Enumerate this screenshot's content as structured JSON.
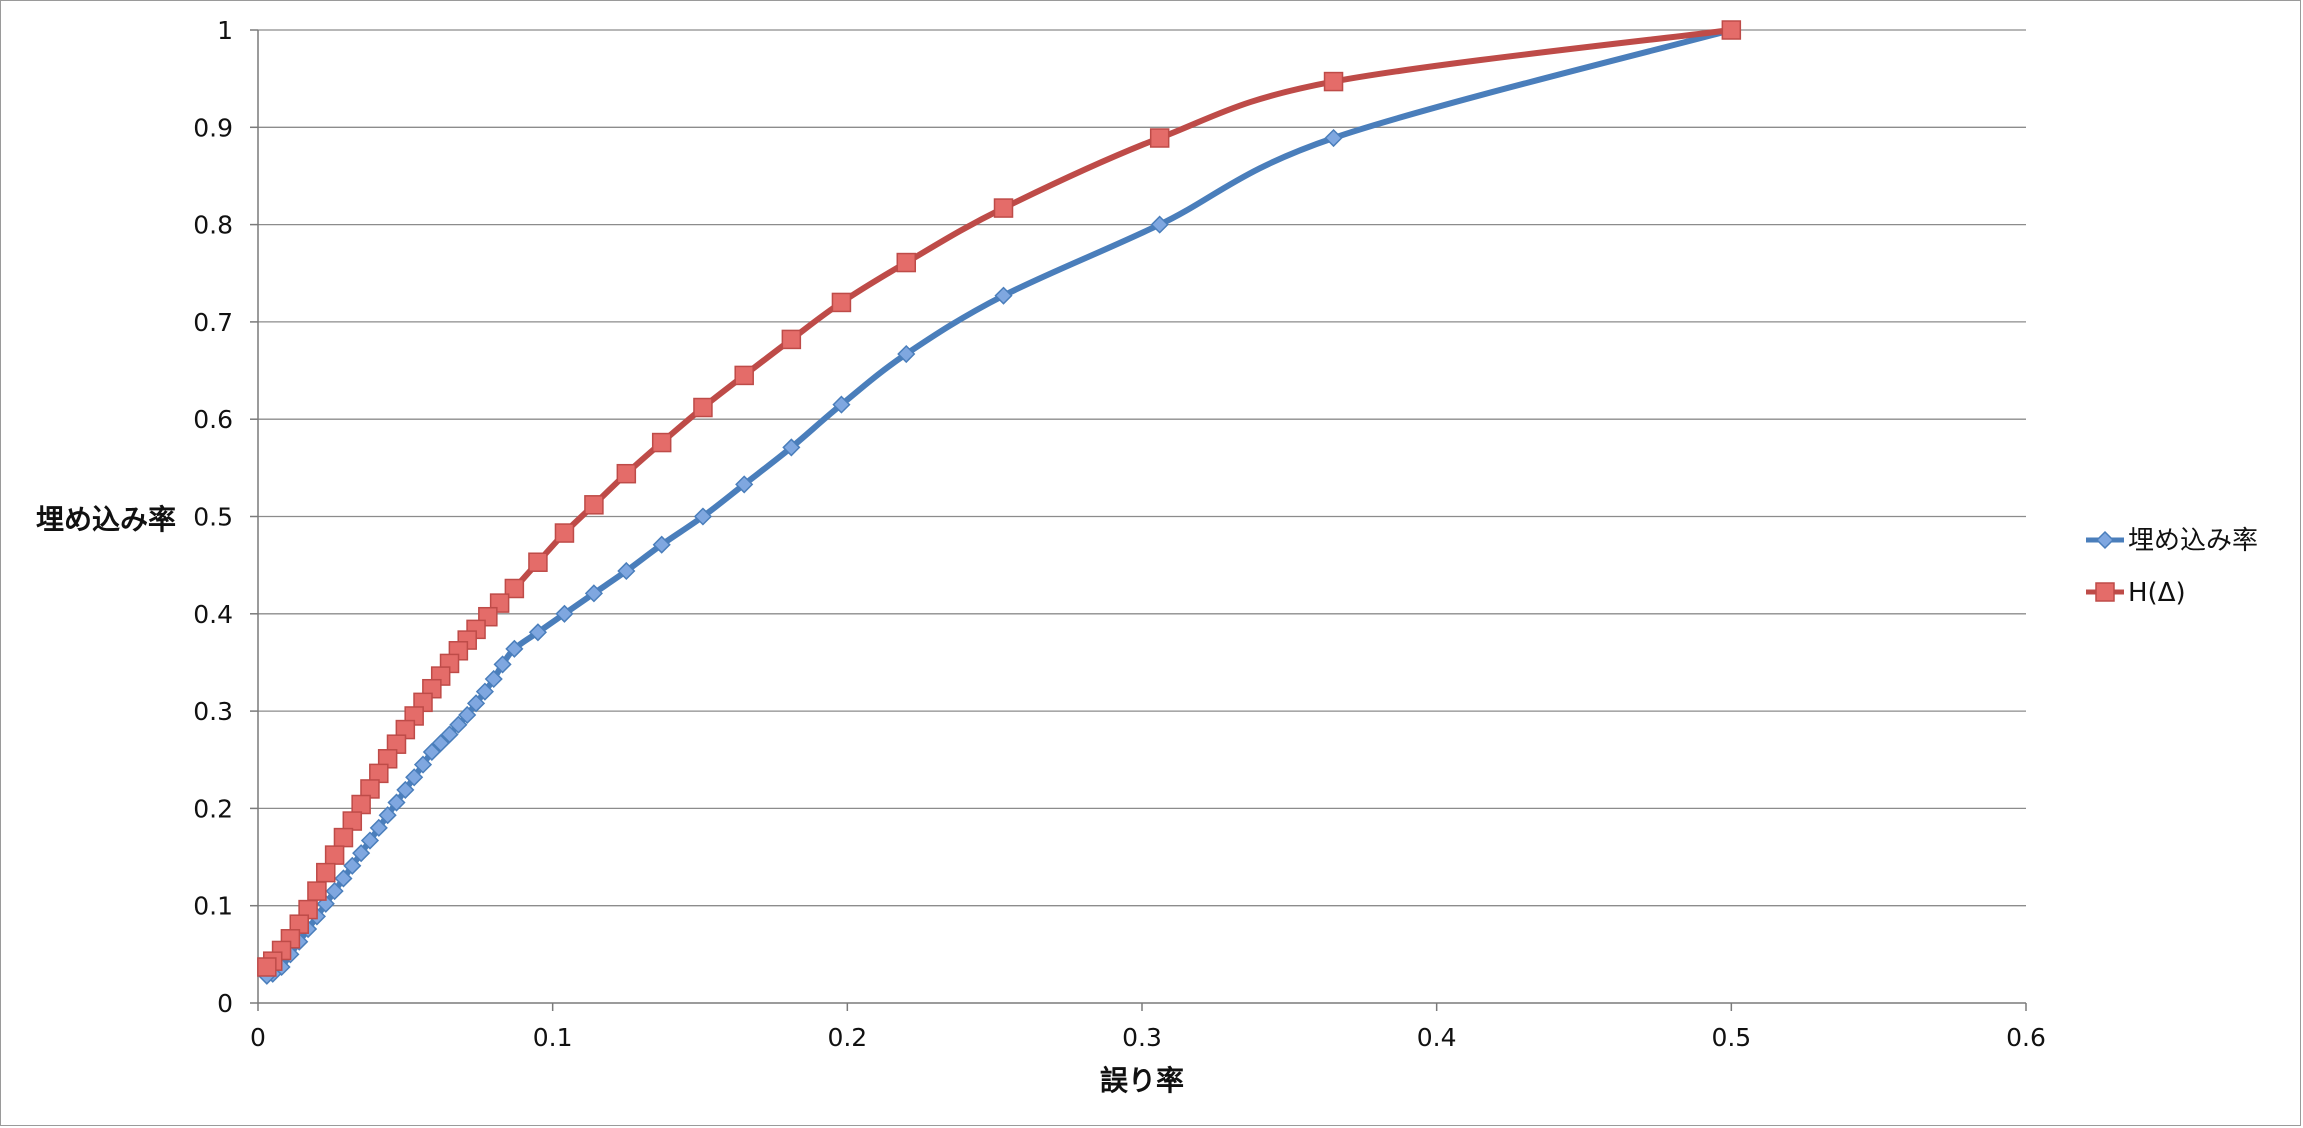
{
  "chart_data": {
    "type": "line",
    "title": "",
    "xlabel": "誤り率",
    "ylabel": "埋め込み率",
    "xlim": [
      0,
      0.6
    ],
    "ylim": [
      0,
      1
    ],
    "xticks": [
      0,
      0.1,
      0.2,
      0.3,
      0.4,
      0.5,
      0.6
    ],
    "xtick_labels": [
      "0",
      "0.1",
      "0.2",
      "0.3",
      "0.4",
      "0.5",
      "0.6"
    ],
    "yticks": [
      0,
      0.1,
      0.2,
      0.3,
      0.4,
      0.5,
      0.6,
      0.7,
      0.8,
      0.9,
      1
    ],
    "ytick_labels": [
      "0",
      "0.1",
      "0.2",
      "0.3",
      "0.4",
      "0.5",
      "0.6",
      "0.7",
      "0.8",
      "0.9",
      "1"
    ],
    "grid": "horizontal",
    "legend_position": "right",
    "series": [
      {
        "name": "埋め込み率",
        "color": "#4a7ebb",
        "marker_color": "#7fa7e0",
        "marker": "diamond",
        "x": [
          0.5,
          0.365,
          0.306,
          0.253,
          0.22,
          0.198,
          0.181,
          0.165,
          0.151,
          0.137,
          0.125,
          0.114,
          0.104,
          0.095,
          0.087,
          0.083,
          0.08,
          0.077,
          0.074,
          0.071,
          0.068,
          0.065,
          0.062,
          0.059,
          0.056,
          0.053,
          0.05,
          0.047,
          0.044,
          0.041,
          0.038,
          0.035,
          0.032,
          0.029,
          0.026,
          0.023,
          0.02,
          0.017,
          0.014,
          0.011,
          0.008,
          0.005,
          0.003
        ],
        "y": [
          1,
          0.889,
          0.8,
          0.727,
          0.667,
          0.615,
          0.571,
          0.533,
          0.5,
          0.471,
          0.444,
          0.421,
          0.4,
          0.381,
          0.364,
          0.348,
          0.333,
          0.32,
          0.308,
          0.296,
          0.286,
          0.276,
          0.267,
          0.258,
          0.245,
          0.232,
          0.219,
          0.206,
          0.193,
          0.18,
          0.167,
          0.154,
          0.141,
          0.128,
          0.115,
          0.102,
          0.089,
          0.076,
          0.063,
          0.05,
          0.037,
          0.03,
          0.028
        ]
      },
      {
        "name": "H(Δ)",
        "color": "#be4b48",
        "marker_color": "#e46c69",
        "marker": "square",
        "x": [
          0.5,
          0.365,
          0.306,
          0.253,
          0.22,
          0.198,
          0.181,
          0.165,
          0.151,
          0.137,
          0.125,
          0.114,
          0.104,
          0.095,
          0.087,
          0.082,
          0.078,
          0.074,
          0.071,
          0.068,
          0.065,
          0.062,
          0.059,
          0.056,
          0.053,
          0.05,
          0.047,
          0.044,
          0.041,
          0.038,
          0.035,
          0.032,
          0.029,
          0.026,
          0.023,
          0.02,
          0.017,
          0.014,
          0.011,
          0.008,
          0.005,
          0.003
        ],
        "y": [
          1,
          0.947,
          0.889,
          0.817,
          0.761,
          0.72,
          0.682,
          0.645,
          0.612,
          0.576,
          0.544,
          0.512,
          0.483,
          0.453,
          0.426,
          0.411,
          0.397,
          0.384,
          0.373,
          0.362,
          0.349,
          0.336,
          0.323,
          0.309,
          0.295,
          0.281,
          0.266,
          0.251,
          0.236,
          0.22,
          0.204,
          0.187,
          0.17,
          0.152,
          0.134,
          0.115,
          0.096,
          0.081,
          0.066,
          0.054,
          0.043,
          0.037
        ]
      }
    ]
  }
}
